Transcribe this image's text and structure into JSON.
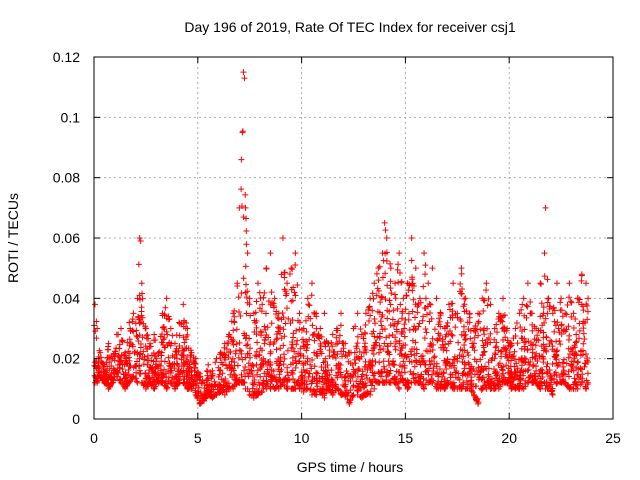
{
  "chart_data": {
    "type": "scatter",
    "title": "Day 196 of 2019, Rate Of TEC Index for receiver csj1",
    "xlabel": "GPS time / hours",
    "ylabel": "ROTI / TECUs",
    "xlim": [
      0,
      25
    ],
    "ylim": [
      0,
      0.12
    ],
    "x_ticks": [
      0,
      5,
      10,
      15,
      20,
      25
    ],
    "y_ticks": [
      0,
      0.02,
      0.04,
      0.06,
      0.08,
      0.1,
      0.12
    ],
    "x_tick_labels": [
      "0",
      "5",
      "10",
      "15",
      "20",
      "25"
    ],
    "y_tick_labels": [
      "0",
      "0.02",
      "0.04",
      "0.06",
      "0.08",
      "0.1",
      "0.12"
    ],
    "grid": true,
    "marker": "+",
    "color": "#ff0000",
    "series": [
      {
        "name": "ROTI",
        "x": [
          0.05,
          0.15,
          0.3,
          0.5,
          0.7,
          0.9,
          1.1,
          1.3,
          1.5,
          1.7,
          1.9,
          2.1,
          2.2,
          2.25,
          2.3,
          2.5,
          2.7,
          2.9,
          3.1,
          3.3,
          3.5,
          3.7,
          3.9,
          4.1,
          4.3,
          4.5,
          4.7,
          4.9,
          5.1,
          5.3,
          5.5,
          5.7,
          5.9,
          6.1,
          6.3,
          6.5,
          6.7,
          6.9,
          7.0,
          7.1,
          7.15,
          7.2,
          7.25,
          7.3,
          7.4,
          7.5,
          7.7,
          7.9,
          8.1,
          8.3,
          8.5,
          8.7,
          8.9,
          9.1,
          9.3,
          9.5,
          9.7,
          9.9,
          10.1,
          10.3,
          10.5,
          10.7,
          10.9,
          11.1,
          11.3,
          11.5,
          11.7,
          11.9,
          12.1,
          12.3,
          12.5,
          12.7,
          12.9,
          13.1,
          13.3,
          13.5,
          13.7,
          13.9,
          14.0,
          14.1,
          14.3,
          14.5,
          14.7,
          14.9,
          15.1,
          15.3,
          15.5,
          15.7,
          15.9,
          16.1,
          16.3,
          16.5,
          16.7,
          16.9,
          17.1,
          17.3,
          17.5,
          17.7,
          17.9,
          18.1,
          18.3,
          18.5,
          18.7,
          18.9,
          19.1,
          19.3,
          19.5,
          19.7,
          19.9,
          20.1,
          20.3,
          20.5,
          20.7,
          20.9,
          21.1,
          21.3,
          21.5,
          21.7,
          21.75,
          21.9,
          22.1,
          22.3,
          22.5,
          22.7,
          22.9,
          23.1,
          23.3,
          23.5,
          23.7,
          23.8
        ],
        "y": [
          0.038,
          0.03,
          0.022,
          0.018,
          0.025,
          0.02,
          0.028,
          0.03,
          0.022,
          0.032,
          0.035,
          0.04,
          0.06,
          0.059,
          0.045,
          0.03,
          0.025,
          0.028,
          0.022,
          0.035,
          0.04,
          0.03,
          0.025,
          0.032,
          0.038,
          0.03,
          0.022,
          0.02,
          0.015,
          0.012,
          0.018,
          0.016,
          0.02,
          0.022,
          0.025,
          0.028,
          0.035,
          0.045,
          0.07,
          0.086,
          0.095,
          0.115,
          0.113,
          0.07,
          0.055,
          0.04,
          0.035,
          0.045,
          0.038,
          0.05,
          0.055,
          0.04,
          0.035,
          0.06,
          0.045,
          0.05,
          0.055,
          0.035,
          0.03,
          0.04,
          0.045,
          0.035,
          0.03,
          0.035,
          0.025,
          0.028,
          0.03,
          0.035,
          0.025,
          0.022,
          0.03,
          0.035,
          0.028,
          0.035,
          0.04,
          0.045,
          0.05,
          0.055,
          0.065,
          0.06,
          0.05,
          0.045,
          0.055,
          0.04,
          0.045,
          0.06,
          0.05,
          0.04,
          0.055,
          0.045,
          0.05,
          0.04,
          0.035,
          0.03,
          0.038,
          0.045,
          0.035,
          0.05,
          0.04,
          0.035,
          0.03,
          0.035,
          0.04,
          0.045,
          0.038,
          0.03,
          0.035,
          0.04,
          0.03,
          0.025,
          0.03,
          0.035,
          0.04,
          0.045,
          0.035,
          0.03,
          0.045,
          0.055,
          0.07,
          0.04,
          0.035,
          0.045,
          0.04,
          0.035,
          0.045,
          0.035,
          0.04,
          0.048,
          0.045,
          0.04
        ],
        "lower": [
          0.012,
          0.012,
          0.014,
          0.012,
          0.01,
          0.012,
          0.014,
          0.012,
          0.01,
          0.012,
          0.014,
          0.012,
          0.015,
          0.015,
          0.012,
          0.01,
          0.012,
          0.01,
          0.012,
          0.012,
          0.01,
          0.012,
          0.01,
          0.012,
          0.012,
          0.01,
          0.01,
          0.008,
          0.005,
          0.006,
          0.008,
          0.007,
          0.008,
          0.009,
          0.008,
          0.01,
          0.01,
          0.012,
          0.012,
          0.012,
          0.012,
          0.012,
          0.012,
          0.01,
          0.01,
          0.008,
          0.007,
          0.008,
          0.009,
          0.01,
          0.01,
          0.01,
          0.01,
          0.012,
          0.01,
          0.01,
          0.01,
          0.01,
          0.009,
          0.01,
          0.008,
          0.008,
          0.009,
          0.007,
          0.01,
          0.008,
          0.01,
          0.008,
          0.008,
          0.005,
          0.008,
          0.008,
          0.007,
          0.008,
          0.008,
          0.01,
          0.012,
          0.012,
          0.012,
          0.012,
          0.012,
          0.012,
          0.01,
          0.012,
          0.01,
          0.012,
          0.012,
          0.012,
          0.01,
          0.012,
          0.012,
          0.01,
          0.01,
          0.01,
          0.012,
          0.01,
          0.01,
          0.01,
          0.01,
          0.01,
          0.008,
          0.005,
          0.01,
          0.01,
          0.01,
          0.01,
          0.01,
          0.012,
          0.012,
          0.01,
          0.01,
          0.01,
          0.01,
          0.012,
          0.012,
          0.012,
          0.01,
          0.012,
          0.01,
          0.01,
          0.008,
          0.012,
          0.012,
          0.012,
          0.01,
          0.01,
          0.01,
          0.012,
          0.01,
          0.012
        ]
      }
    ]
  }
}
